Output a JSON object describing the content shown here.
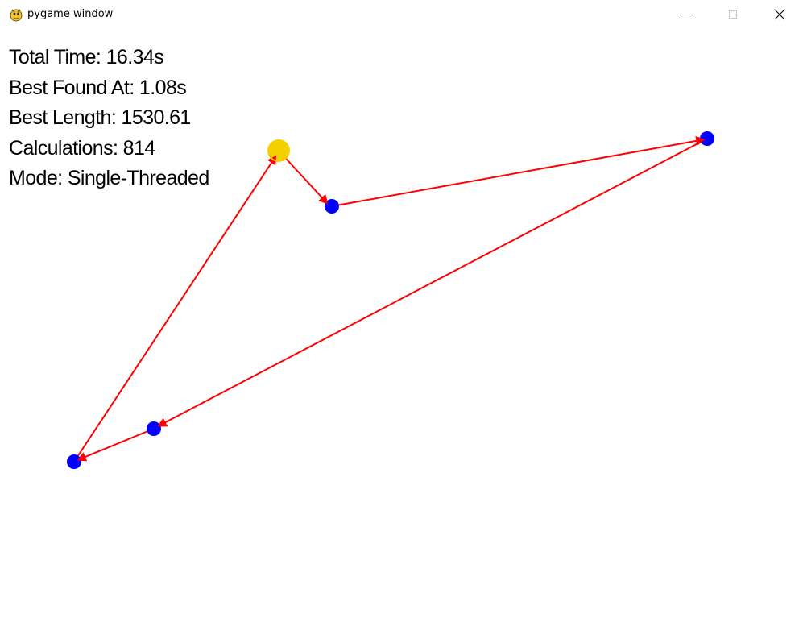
{
  "window": {
    "title": "pygame window",
    "app_icon": "pygame-snake-icon",
    "controls": {
      "minimize_icon": "minimize-icon",
      "maximize_icon": "maximize-icon",
      "close_icon": "close-icon"
    }
  },
  "hud": {
    "total_time": "Total Time: 16.34s",
    "best_found_at": "Best Found At: 1.08s",
    "best_length": "Best Length: 1530.61",
    "calculations": "Calculations: 814",
    "mode": "Mode: Single-Threaded"
  },
  "tour": {
    "start_city_color": "#f5d000",
    "city_color": "#0000ff",
    "edge_color": "#ff0000"
  }
}
